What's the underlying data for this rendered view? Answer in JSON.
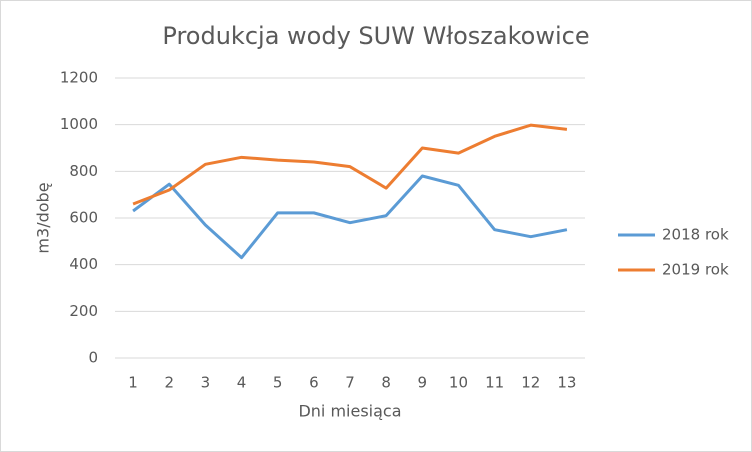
{
  "chart_data": {
    "type": "line",
    "title": "Produkcja wody SUW Włoszakowice",
    "x_label": "Dni miesiąca",
    "y_label": "m3/dobę",
    "categories": [
      1,
      2,
      3,
      4,
      5,
      6,
      7,
      8,
      9,
      10,
      11,
      12,
      13
    ],
    "series": [
      {
        "name": "2018 rok",
        "color": "#5b9bd5",
        "values": [
          630,
          745,
          570,
          430,
          622,
          622,
          580,
          610,
          780,
          740,
          550,
          520,
          550
        ]
      },
      {
        "name": "2019 rok",
        "color": "#ed7d31",
        "values": [
          660,
          720,
          830,
          860,
          848,
          840,
          820,
          728,
          900,
          878,
          950,
          998,
          980
        ]
      }
    ],
    "ylim": [
      0,
      1200
    ],
    "yticks": [
      0,
      200,
      400,
      600,
      800,
      1000,
      1200
    ],
    "grid": true,
    "legend": "right"
  }
}
